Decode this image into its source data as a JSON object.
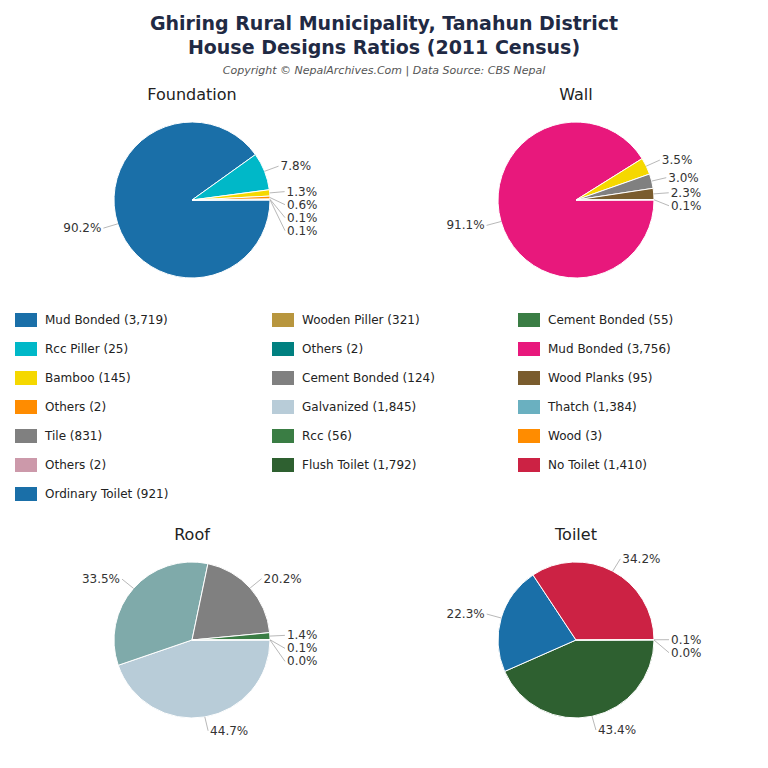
{
  "title": "Ghiring Rural Municipality, Tanahun District",
  "subtitle": "House Designs Ratios (2011 Census)",
  "annotation": "Copyright © NepalArchives.Com | Data Source: CBS Nepal",
  "chart_data": [
    {
      "type": "pie",
      "title": "Foundation",
      "values": [
        90.2,
        7.8,
        1.3,
        0.6,
        0.1,
        0.1
      ],
      "value_labels": [
        "90.2%",
        "7.8%",
        "1.3%",
        "0.6%",
        "0.1%",
        "0.1%"
      ],
      "colors": [
        "#1a6fa8",
        "#00b8c8",
        "#f5d800",
        "#ff8c00",
        "#b8963e",
        "#008080"
      ],
      "data_labels": true
    },
    {
      "type": "pie",
      "title": "Wall",
      "values": [
        91.1,
        3.5,
        3.0,
        2.3,
        0.1
      ],
      "value_labels": [
        "91.1%",
        "3.5%",
        "3.0%",
        "2.3%",
        "0.1%"
      ],
      "colors": [
        "#e8187c",
        "#f5d800",
        "#808080",
        "#7a5c2e",
        "#6ab0c0"
      ],
      "data_labels": true
    },
    {
      "type": "pie",
      "title": "Roof",
      "values": [
        44.7,
        33.5,
        20.2,
        1.4,
        0.1,
        0.0
      ],
      "value_labels": [
        "44.7%",
        "33.5%",
        "20.2%",
        "1.4%",
        "0.1%",
        "0.0%"
      ],
      "colors": [
        "#b8ccd8",
        "#7faaaa",
        "#808080",
        "#3a7d44",
        "#2e6030",
        "#1a6fa8"
      ],
      "data_labels": true
    },
    {
      "type": "pie",
      "title": "Toilet",
      "values": [
        43.4,
        22.3,
        34.2,
        0.1,
        0.0
      ],
      "value_labels": [
        "43.4%",
        "22.3%",
        "34.2%",
        "0.1%",
        "0.0%"
      ],
      "colors": [
        "#2e6030",
        "#1a6fa8",
        "#cc2244",
        "#ff8c00",
        "#e91e8c"
      ],
      "data_labels": true
    },
    {
      "type": "legend",
      "columns": [
        {
          "categories": [
            "Mud Bonded (3,719)",
            "Rcc Piller (25)",
            "Bamboo (145)",
            "Others (2)",
            "Tile (831)",
            "Others (2)",
            "Ordinary Toilet (921)"
          ],
          "colors": [
            "#1a6fa8",
            "#00b8c8",
            "#f5d800",
            "#ff8c00",
            "#808080",
            "#cc99aa",
            "#1a6fa8"
          ]
        },
        {
          "categories": [
            "Wooden Piller (321)",
            "Others (2)",
            "Cement Bonded (124)",
            "Galvanized (1,845)",
            "Rcc (56)",
            "Flush Toilet (1,792)"
          ],
          "colors": [
            "#b8963e",
            "#008080",
            "#808080",
            "#b8ccd8",
            "#3a7d44",
            "#2e6030"
          ]
        },
        {
          "categories": [
            "Cement Bonded (55)",
            "Mud Bonded (3,756)",
            "Wood Planks (95)",
            "Thatch (1,384)",
            "Wood (3)",
            "No Toilet (1,410)"
          ],
          "colors": [
            "#3a7d44",
            "#e8187c",
            "#7a5c2e",
            "#6ab0c0",
            "#ff8c00",
            "#cc2244"
          ]
        }
      ]
    }
  ]
}
